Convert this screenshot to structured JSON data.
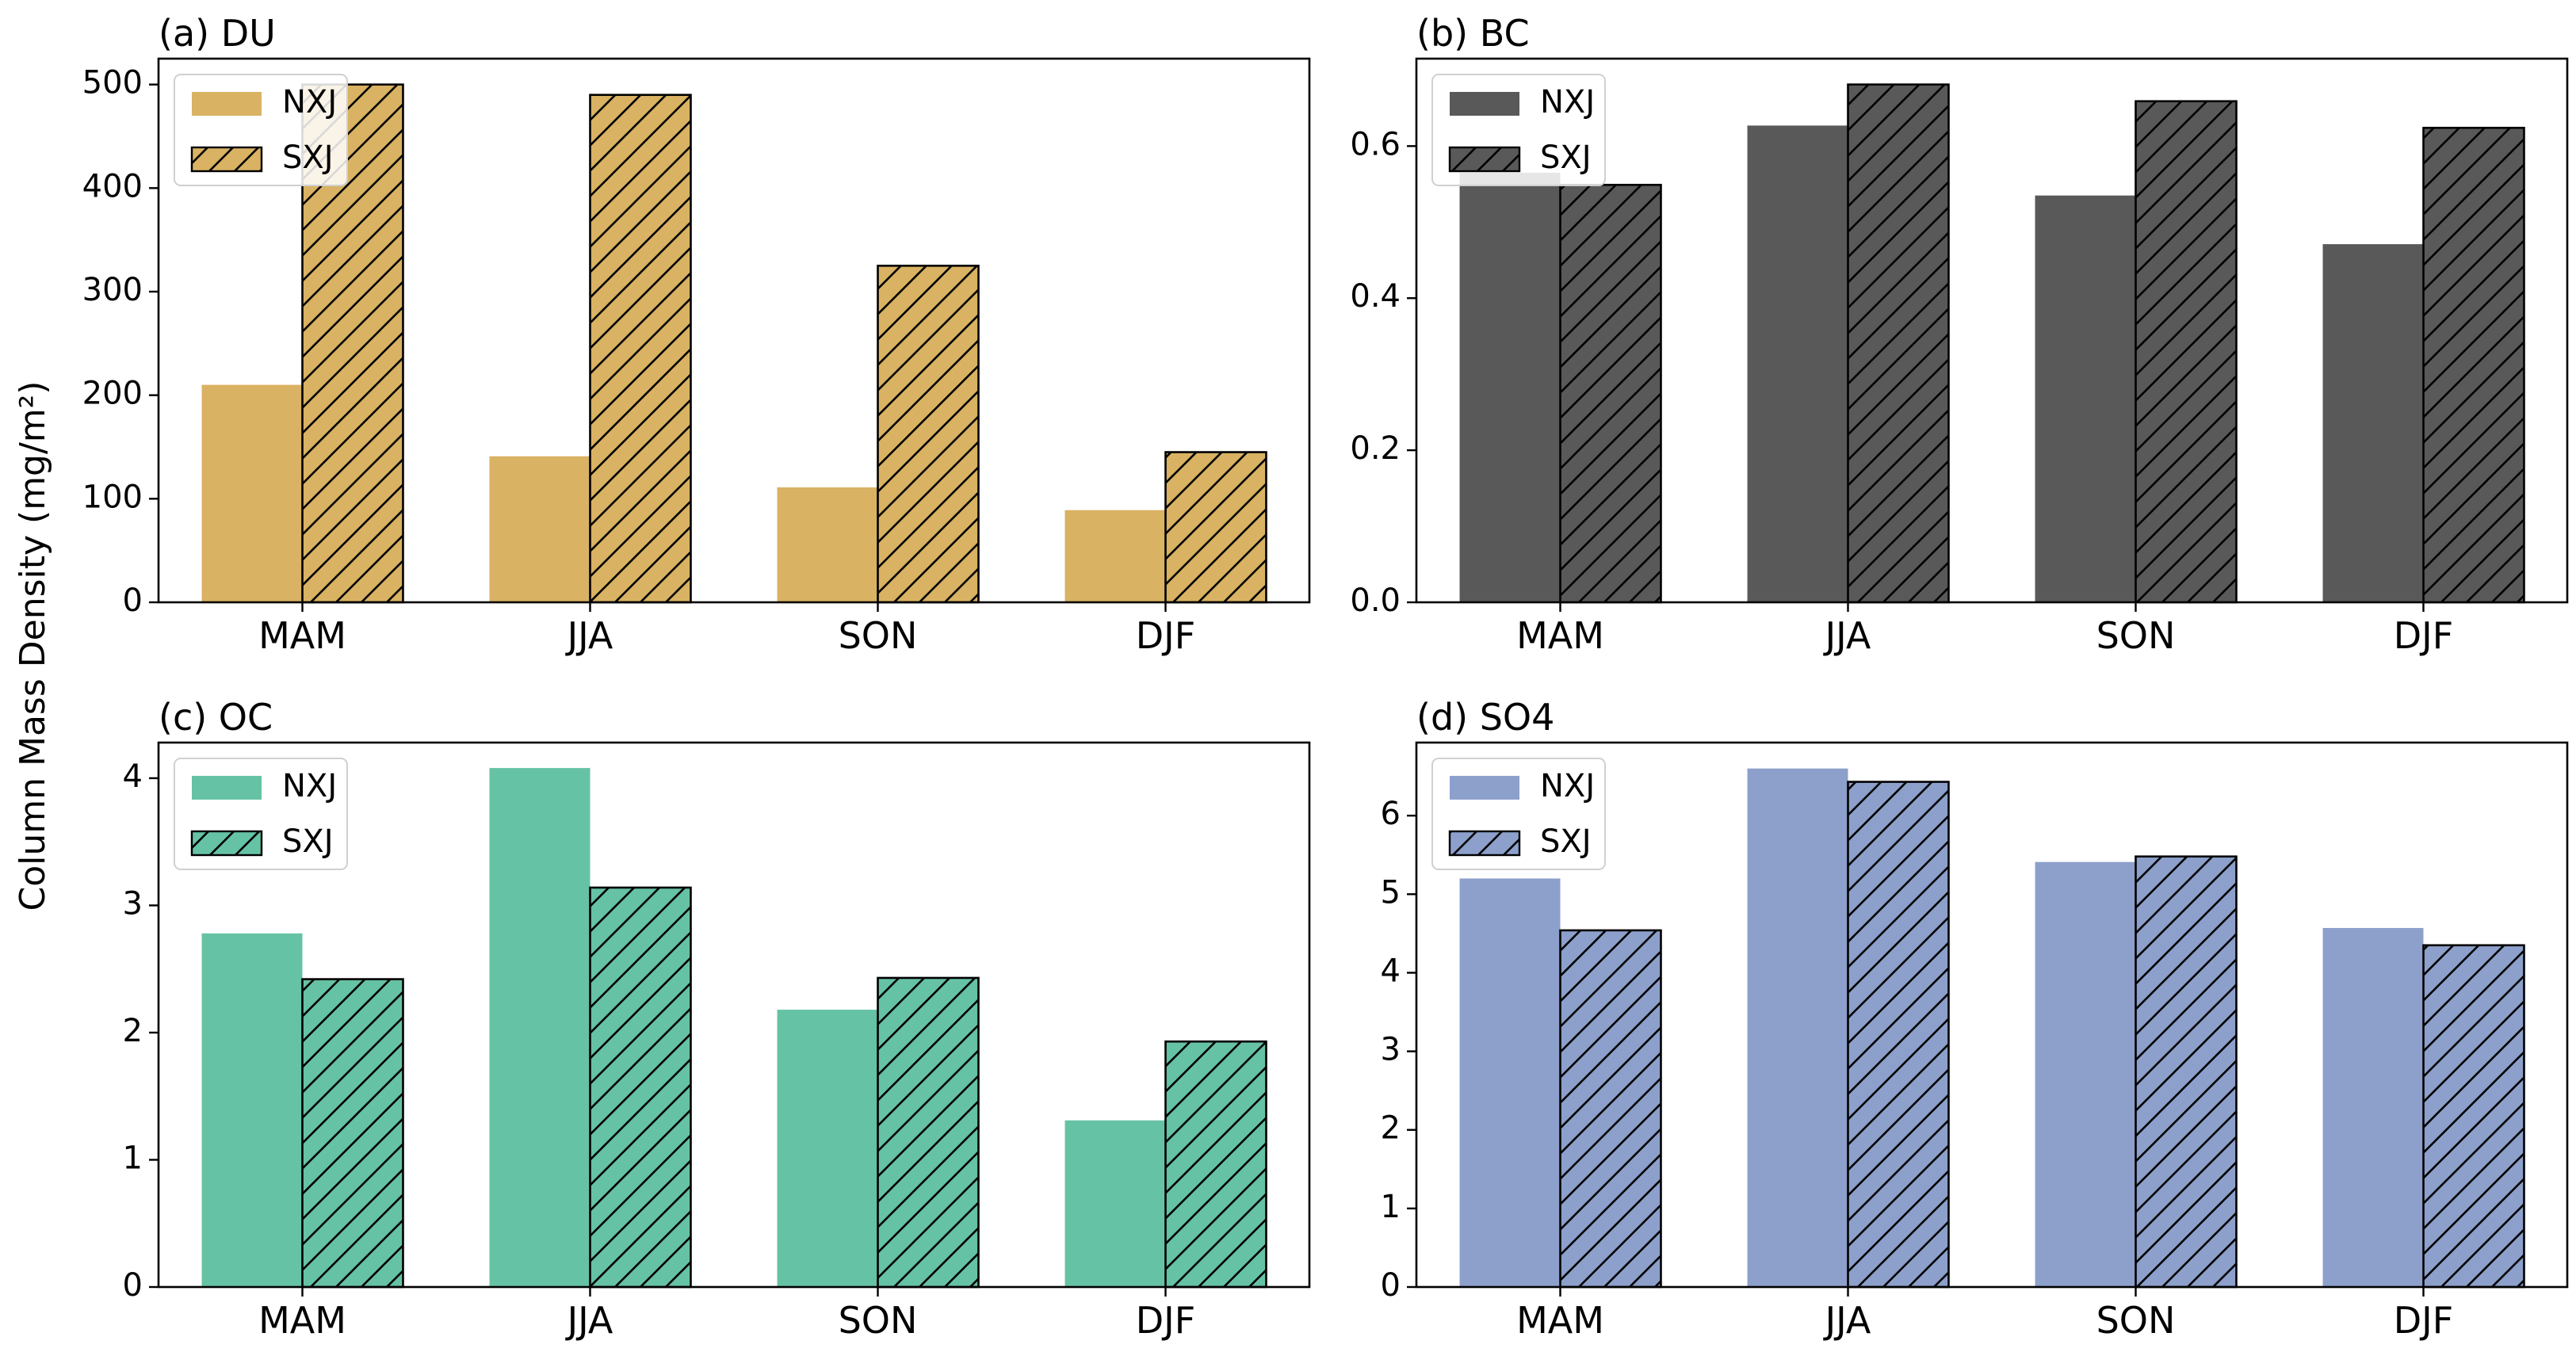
{
  "figure": {
    "ylabel": "Column Mass Density (mg/m²)"
  },
  "chart_data": [
    {
      "type": "bar",
      "title": "(a) DU",
      "color": "#d9b263",
      "categories": [
        "MAM",
        "JJA",
        "SON",
        "DJF"
      ],
      "series": [
        {
          "name": "NXJ",
          "hatched": false,
          "values": [
            210,
            141,
            111,
            89
          ]
        },
        {
          "name": "SXJ",
          "hatched": true,
          "values": [
            500,
            490,
            325,
            145
          ]
        }
      ],
      "ylim": [
        0,
        525
      ],
      "yticks": [
        0,
        100,
        200,
        300,
        400,
        500
      ],
      "ytick_labels": [
        "0",
        "100",
        "200",
        "300",
        "400",
        "500"
      ],
      "legend": "top-left"
    },
    {
      "type": "bar",
      "title": "(b) BC",
      "color": "#595959",
      "categories": [
        "MAM",
        "JJA",
        "SON",
        "DJF"
      ],
      "series": [
        {
          "name": "NXJ",
          "hatched": false,
          "values": [
            0.565,
            0.627,
            0.535,
            0.471
          ]
        },
        {
          "name": "SXJ",
          "hatched": true,
          "values": [
            0.549,
            0.681,
            0.659,
            0.624
          ]
        }
      ],
      "ylim": [
        0,
        0.715
      ],
      "yticks": [
        0,
        0.2,
        0.4,
        0.6
      ],
      "ytick_labels": [
        "0.0",
        "0.2",
        "0.4",
        "0.6"
      ],
      "legend": "top-left"
    },
    {
      "type": "bar",
      "title": "(c) OC",
      "color": "#66c2a5",
      "categories": [
        "MAM",
        "JJA",
        "SON",
        "DJF"
      ],
      "series": [
        {
          "name": "NXJ",
          "hatched": false,
          "values": [
            2.78,
            4.08,
            2.18,
            1.31
          ]
        },
        {
          "name": "SXJ",
          "hatched": true,
          "values": [
            2.42,
            3.14,
            2.43,
            1.93
          ]
        }
      ],
      "ylim": [
        0,
        4.28
      ],
      "yticks": [
        0,
        1,
        2,
        3,
        4
      ],
      "ytick_labels": [
        "0",
        "1",
        "2",
        "3",
        "4"
      ],
      "legend": "top-left"
    },
    {
      "type": "bar",
      "title": "(d) SO4",
      "color": "#8da0cb",
      "categories": [
        "MAM",
        "JJA",
        "SON",
        "DJF"
      ],
      "series": [
        {
          "name": "NXJ",
          "hatched": false,
          "values": [
            5.2,
            6.6,
            5.41,
            4.57
          ]
        },
        {
          "name": "SXJ",
          "hatched": true,
          "values": [
            4.54,
            6.43,
            5.48,
            4.35
          ]
        }
      ],
      "ylim": [
        0,
        6.93
      ],
      "yticks": [
        0,
        1,
        2,
        3,
        4,
        5,
        6
      ],
      "ytick_labels": [
        "0",
        "1",
        "2",
        "3",
        "4",
        "5",
        "6"
      ],
      "legend": "top-left"
    }
  ]
}
